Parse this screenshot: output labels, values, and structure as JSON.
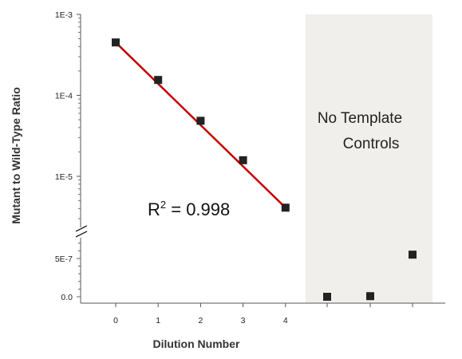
{
  "chart_data": {
    "type": "scatter",
    "xlabel": "Dilution Number",
    "ylabel": "Mutant to Wild-Type Ratio",
    "x_tick_labels": [
      "0",
      "1",
      "2",
      "3",
      "4"
    ],
    "y_tick_labels_log": [
      "1E-3",
      "1E-4",
      "1E-5"
    ],
    "y_tick_labels_linear": [
      "5E-7",
      "0.0"
    ],
    "y_scale": "log (upper) with axis break to linear (lower)",
    "ylim_log": [
      3.3e-06,
      0.001
    ],
    "ylim_linear": [
      0,
      7e-07
    ],
    "grid": false,
    "series": [
      {
        "x": [
          0,
          1,
          2,
          3,
          4
        ],
        "y": [
          0.00045,
          0.000155,
          4.85e-05,
          1.58e-05,
          4.1e-06
        ]
      }
    ],
    "fit_line": {
      "x": [
        0,
        4
      ],
      "y": [
        0.00045,
        4.1e-06
      ],
      "color": "#c00000"
    },
    "ntc": {
      "label": "No Template Controls",
      "values": [
        0.0,
        8e-09,
        5.5e-07
      ]
    },
    "annotation": {
      "base": "R",
      "sup": "2",
      "rest": " = 0.998"
    },
    "colors": {
      "marker": "#222222",
      "fit": "#c00000",
      "ntc_background": "#f0efeb"
    }
  }
}
